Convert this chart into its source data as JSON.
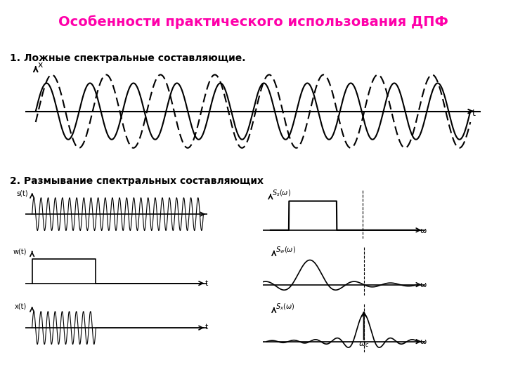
{
  "title": "Особенности практического использования ДПФ",
  "title_color": "#FF00AA",
  "title_fontsize": 14,
  "label1": "1. Ложные спектральные составляющие.",
  "label2": "2. Размывание спектральных составляющих",
  "background_color": "#ffffff"
}
